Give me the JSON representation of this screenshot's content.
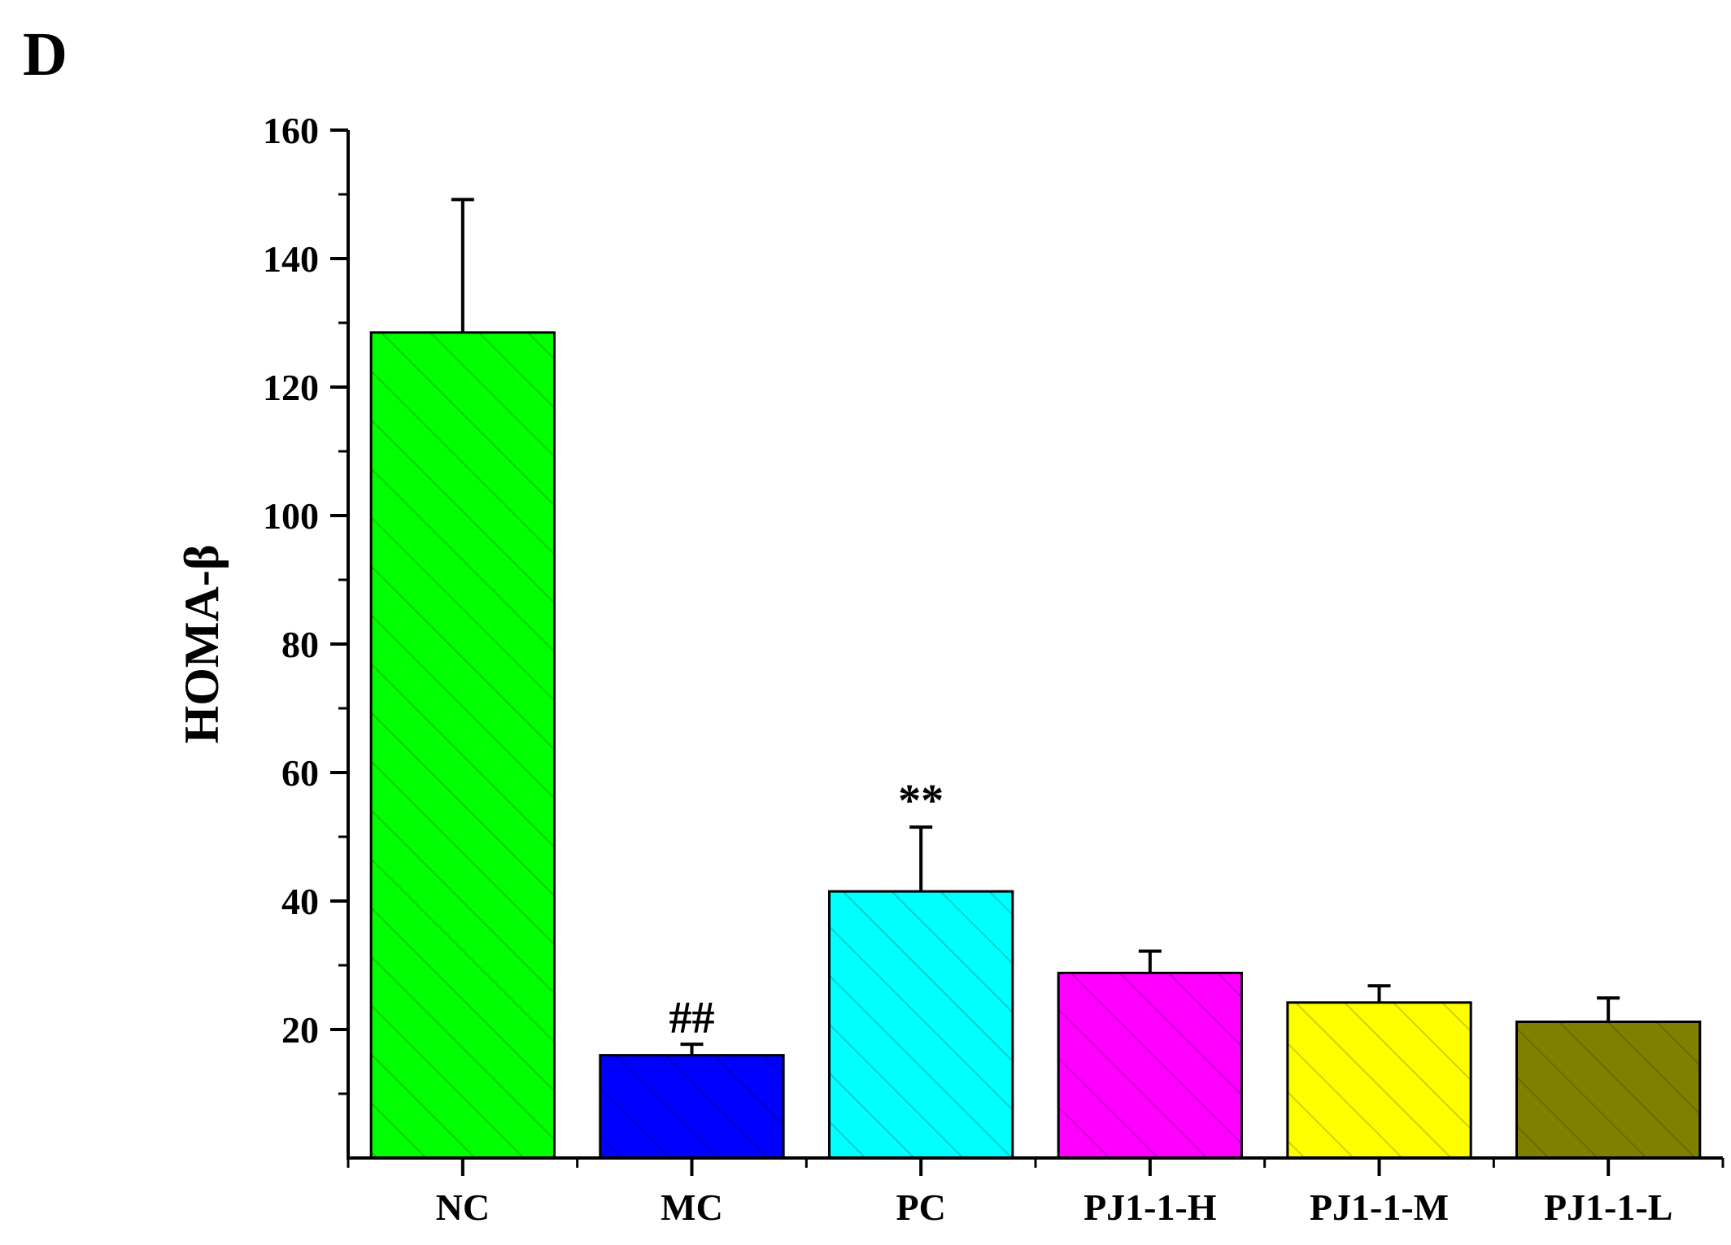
{
  "panel_label": "D",
  "chart_data": {
    "type": "bar",
    "title": "",
    "xlabel": "",
    "ylabel": "HOMA-β",
    "categories": [
      "NC",
      "MC",
      "PC",
      "PJ1-1-H",
      "PJ1-1-M",
      "PJ1-1-L"
    ],
    "values": [
      128.5,
      16.0,
      41.5,
      28.8,
      24.2,
      21.2
    ],
    "errors": [
      20.7,
      1.7,
      10.0,
      3.4,
      2.6,
      3.7
    ],
    "colors": [
      "#00FF00",
      "#0000FF",
      "#00FFFF",
      "#FF00FF",
      "#FFFF00",
      "#808000"
    ],
    "annotations": [
      "",
      "##",
      "**",
      "",
      "",
      ""
    ],
    "ylim": [
      0,
      160
    ],
    "yticks": [
      20,
      40,
      60,
      80,
      100,
      120,
      140,
      160
    ],
    "ytick_labels": [
      "20",
      "40",
      "60",
      "80",
      "100",
      "120",
      "140",
      "160"
    ],
    "hatched": true,
    "grid": false,
    "legend": "none"
  }
}
